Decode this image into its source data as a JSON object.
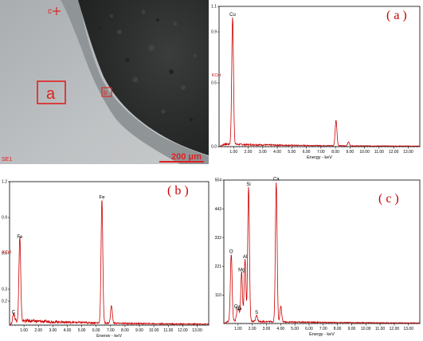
{
  "sem": {
    "markers": [
      "a",
      "b",
      "c"
    ],
    "detector": "SE1",
    "scalebar": "200 μm",
    "colors": {
      "marker": "#e02020",
      "bg_light": "#b9bcbf",
      "bg_dark": "#2e3030"
    }
  },
  "chart_data": [
    {
      "type": "line",
      "panel_label": "( a )",
      "ylabel": "KCnt",
      "xlabel": "Energy - keV",
      "xlim": [
        0,
        13.8
      ],
      "ylim": [
        0,
        1.1
      ],
      "x_ticks": [
        "1.00",
        "2.00",
        "3.00",
        "4.00",
        "5.00",
        "6.00",
        "7.00",
        "8.00",
        "9.00",
        "10.00",
        "11.00",
        "12.00",
        "13.00"
      ],
      "y_ticks": [
        "0.0",
        "0.5",
        "0.9",
        "1.1"
      ],
      "series": [
        {
          "color": "#cc0000",
          "peaks": [
            [
              0.93,
              1.0
            ],
            [
              8.04,
              0.2
            ],
            [
              8.9,
              0.03
            ]
          ],
          "baseline": 0.015
        }
      ],
      "peak_labels": [
        {
          "text": "Cu",
          "x": 0.93,
          "y": 1.0
        }
      ]
    },
    {
      "type": "line",
      "panel_label": "( b )",
      "ylabel": "KCnt",
      "xlabel": "Energy - keV",
      "xlim": [
        0,
        13.8
      ],
      "ylim": [
        0,
        1.2
      ],
      "x_ticks": [
        "1.00",
        "2.00",
        "3.00",
        "4.00",
        "5.00",
        "6.00",
        "7.00",
        "8.00",
        "9.00",
        "10.00",
        "11.00",
        "12.00",
        "13.00"
      ],
      "y_ticks": [
        "0.2",
        "0.3",
        "0.6",
        "0.9",
        "1.2"
      ],
      "series": [
        {
          "color": "#cc0000",
          "peaks": [
            [
              0.28,
              0.07
            ],
            [
              0.71,
              0.7
            ],
            [
              6.4,
              1.03
            ],
            [
              7.06,
              0.15
            ]
          ],
          "baseline": 0.03
        }
      ],
      "peak_labels": [
        {
          "text": "C",
          "x": 0.28,
          "y": 0.07
        },
        {
          "text": "Fe",
          "x": 0.71,
          "y": 0.7
        },
        {
          "text": "Fe",
          "x": 6.4,
          "y": 1.03
        }
      ]
    },
    {
      "type": "line",
      "panel_label": "( c )",
      "xlabel": "Energy - keV",
      "xlim": [
        0,
        13.8
      ],
      "ylim": [
        0,
        554
      ],
      "x_ticks": [
        "1.00",
        "2.00",
        "3.00",
        "4.00",
        "5.00",
        "6.00",
        "7.00",
        "8.00",
        "9.00",
        "10.00",
        "11.00",
        "12.00",
        "13.00"
      ],
      "y_ticks": [
        "554",
        "443",
        "332",
        "221",
        "110"
      ],
      "series": [
        {
          "color": "#cc0000",
          "peaks": [
            [
              0.52,
              260
            ],
            [
              0.93,
              30
            ],
            [
              1.04,
              40
            ],
            [
              1.25,
              190
            ],
            [
              1.49,
              240
            ],
            [
              1.74,
              520
            ],
            [
              2.31,
              25
            ],
            [
              3.69,
              540
            ],
            [
              4.01,
              60
            ]
          ],
          "baseline": 8
        }
      ],
      "peak_labels": [
        {
          "text": "O",
          "x": 0.52,
          "y": 260
        },
        {
          "text": "Na",
          "x": 1.04,
          "y": 40
        },
        {
          "text": "Cu",
          "x": 0.93,
          "y": 30
        },
        {
          "text": "Mg",
          "x": 1.25,
          "y": 190
        },
        {
          "text": "Al",
          "x": 1.49,
          "y": 240
        },
        {
          "text": "Si",
          "x": 1.74,
          "y": 520
        },
        {
          "text": "S",
          "x": 2.31,
          "y": 25
        },
        {
          "text": "Ca",
          "x": 3.69,
          "y": 540
        }
      ]
    }
  ]
}
